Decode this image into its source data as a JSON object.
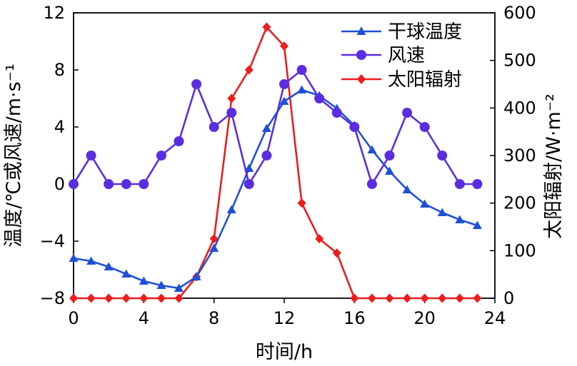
{
  "chart_data": {
    "type": "line",
    "xlabel": "时间/h",
    "ylabel_left": "温度/℃或风速/m·s⁻¹",
    "ylabel_right": "太阳辐射/W·m⁻²",
    "xlim": [
      0,
      24
    ],
    "ylim_left": [
      -8,
      12
    ],
    "ylim_right": [
      0,
      600
    ],
    "x_ticks": [
      "0",
      "4",
      "8",
      "12",
      "16",
      "20",
      "24"
    ],
    "y_left_ticks": [
      "12",
      "8",
      "4",
      "0",
      "−4",
      "−8"
    ],
    "y_right_ticks": [
      "600",
      "500",
      "400",
      "300",
      "200",
      "100",
      "0"
    ],
    "legend_position": "top-right",
    "series": [
      {
        "name": "干球温度",
        "axis": "left",
        "color": "#1f4fd8",
        "marker": "triangle",
        "x": [
          0,
          1,
          2,
          3,
          4,
          5,
          6,
          7,
          8,
          9,
          10,
          11,
          12,
          13,
          14,
          15,
          16,
          17,
          18,
          19,
          20,
          21,
          22,
          23
        ],
        "values": [
          -5.2,
          -5.4,
          -5.8,
          -6.3,
          -6.8,
          -7.1,
          -7.3,
          -6.5,
          -4.5,
          -1.8,
          1.1,
          3.9,
          5.8,
          6.6,
          6.2,
          5.3,
          4.1,
          2.4,
          0.9,
          -0.4,
          -1.4,
          -2.0,
          -2.5,
          -2.9
        ]
      },
      {
        "name": "风速",
        "axis": "left",
        "color": "#5a2ee0",
        "marker": "circle",
        "x": [
          0,
          1,
          2,
          3,
          4,
          5,
          6,
          7,
          8,
          9,
          10,
          11,
          12,
          13,
          14,
          15,
          16,
          17,
          18,
          19,
          20,
          21,
          22,
          23
        ],
        "values": [
          0,
          2,
          0,
          0,
          0,
          2,
          3,
          7,
          4,
          5,
          0,
          2,
          7,
          8,
          6,
          5,
          4,
          0,
          2,
          5,
          4,
          2,
          0,
          0
        ]
      },
      {
        "name": "太阳辐射",
        "axis": "right",
        "color": "#ee1c1c",
        "marker": "diamond",
        "x": [
          0,
          1,
          2,
          3,
          4,
          5,
          6,
          7,
          8,
          9,
          10,
          11,
          12,
          13,
          14,
          15,
          16,
          17,
          18,
          19,
          20,
          21,
          22,
          23
        ],
        "values": [
          0,
          0,
          0,
          0,
          0,
          0,
          0,
          45,
          125,
          420,
          480,
          570,
          530,
          200,
          125,
          95,
          0,
          0,
          0,
          0,
          0,
          0,
          0,
          0
        ]
      }
    ]
  }
}
